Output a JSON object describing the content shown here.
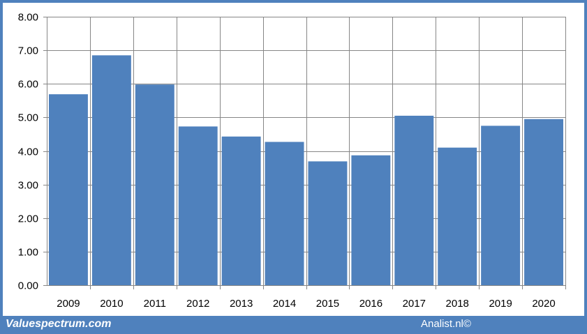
{
  "chart_data": {
    "type": "bar",
    "title": "",
    "xlabel": "",
    "ylabel": "",
    "categories": [
      "2009",
      "2010",
      "2011",
      "2012",
      "2013",
      "2014",
      "2015",
      "2016",
      "2017",
      "2018",
      "2019",
      "2020"
    ],
    "values": [
      5.69,
      6.85,
      5.98,
      4.73,
      4.43,
      4.27,
      3.69,
      3.87,
      5.05,
      4.1,
      4.75,
      4.95
    ],
    "ylim": [
      0,
      8
    ],
    "yticks": [
      "0.00",
      "1.00",
      "2.00",
      "3.00",
      "4.00",
      "5.00",
      "6.00",
      "7.00",
      "8.00"
    ],
    "grid": true,
    "legend": "none",
    "bar_color": "#4f81bd",
    "grid_color": "#868686"
  },
  "footer": {
    "left_text": "Valuespectrum.com",
    "right_text": "Analist.nl©"
  },
  "colors": {
    "frame": "#4f81bd",
    "background": "#ffffff"
  }
}
